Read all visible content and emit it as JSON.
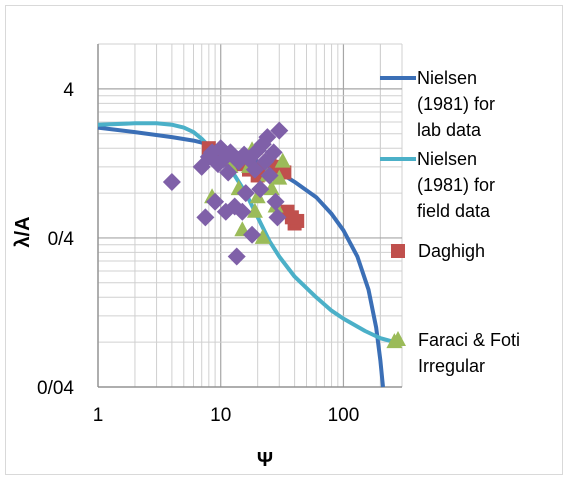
{
  "chart_data": {
    "type": "scatter",
    "xlabel": "Ψ",
    "ylabel": "λ/A",
    "x_scale": "log",
    "y_scale": "log",
    "xlim": [
      1,
      300
    ],
    "ylim": [
      0.04,
      8
    ],
    "grid": true,
    "legend_position": "right",
    "x_ticks": [
      {
        "v": 1,
        "label": "1"
      },
      {
        "v": 10,
        "label": "10"
      },
      {
        "v": 100,
        "label": "100"
      }
    ],
    "y_ticks": [
      {
        "v": 0.04,
        "label": "0/04"
      },
      {
        "v": 0.4,
        "label": "0/4"
      },
      {
        "v": 4,
        "label": "4"
      }
    ],
    "series": [
      {
        "name": "Nielsen (1981) for lab data",
        "legend_lines": [
          "Nielsen",
          "(1981) for",
          "lab data"
        ],
        "kind": "line",
        "color": "#3b6fb6",
        "points": [
          [
            1,
            2.2
          ],
          [
            2,
            2.05
          ],
          [
            4,
            1.9
          ],
          [
            6,
            1.8
          ],
          [
            8,
            1.7
          ],
          [
            10,
            1.62
          ],
          [
            15,
            1.45
          ],
          [
            20,
            1.3
          ],
          [
            30,
            1.1
          ],
          [
            40,
            0.95
          ],
          [
            60,
            0.75
          ],
          [
            80,
            0.58
          ],
          [
            100,
            0.45
          ],
          [
            130,
            0.3
          ],
          [
            160,
            0.18
          ],
          [
            185,
            0.1
          ],
          [
            200,
            0.06
          ],
          [
            210,
            0.04
          ]
        ]
      },
      {
        "name": "Nielsen (1981) for field data",
        "legend_lines": [
          "Nielsen",
          "(1981) for",
          "field data"
        ],
        "kind": "line",
        "color": "#4bb0c8",
        "points": [
          [
            1,
            2.3
          ],
          [
            2,
            2.35
          ],
          [
            3,
            2.35
          ],
          [
            4,
            2.3
          ],
          [
            5,
            2.2
          ],
          [
            6,
            2.05
          ],
          [
            7,
            1.85
          ],
          [
            8,
            1.65
          ],
          [
            10,
            1.35
          ],
          [
            13,
            1.05
          ],
          [
            16,
            0.8
          ],
          [
            20,
            0.55
          ],
          [
            25,
            0.38
          ],
          [
            30,
            0.3
          ],
          [
            40,
            0.22
          ],
          [
            60,
            0.16
          ],
          [
            80,
            0.13
          ],
          [
            100,
            0.115
          ],
          [
            150,
            0.095
          ],
          [
            200,
            0.085
          ],
          [
            260,
            0.08
          ]
        ]
      },
      {
        "name": "Daghigh",
        "legend_lines": [
          "Daghigh"
        ],
        "kind": "square",
        "color": "#c0504d",
        "points": [
          [
            8,
            1.6
          ],
          [
            9.5,
            1.45
          ],
          [
            12,
            1.35
          ],
          [
            14,
            1.25
          ],
          [
            17,
            1.15
          ],
          [
            20,
            1.05
          ],
          [
            22,
            1.15
          ],
          [
            25,
            1.3
          ],
          [
            30,
            1.2
          ],
          [
            33,
            1.1
          ],
          [
            35,
            0.6
          ],
          [
            40,
            0.5
          ],
          [
            42,
            0.52
          ],
          [
            38,
            0.55
          ]
        ]
      },
      {
        "name": "Faraci & Foti Irregular",
        "legend_lines": [
          "Faraci & Foti",
          "Irregular"
        ],
        "kind": "triangle",
        "color": "#9bbb59",
        "points": [
          [
            8.5,
            0.75
          ],
          [
            12,
            1.2
          ],
          [
            14,
            0.85
          ],
          [
            15,
            0.45
          ],
          [
            17,
            1.2
          ],
          [
            18,
            1.55
          ],
          [
            19,
            0.6
          ],
          [
            20,
            0.75
          ],
          [
            22,
            0.4
          ],
          [
            24,
            1.05
          ],
          [
            26,
            0.85
          ],
          [
            28,
            0.65
          ],
          [
            30,
            1.0
          ],
          [
            32,
            1.3
          ],
          [
            260,
            0.08
          ]
        ]
      },
      {
        "name": "",
        "legend_lines": [],
        "kind": "diamond",
        "color": "#7f60a8",
        "points": [
          [
            4,
            0.95
          ],
          [
            7,
            1.2
          ],
          [
            7.5,
            0.55
          ],
          [
            8,
            1.4
          ],
          [
            8.5,
            1.5
          ],
          [
            9,
            0.7
          ],
          [
            9.5,
            1.25
          ],
          [
            10,
            1.6
          ],
          [
            10.5,
            1.35
          ],
          [
            11,
            0.6
          ],
          [
            11.5,
            1.1
          ],
          [
            12,
            1.5
          ],
          [
            13,
            0.65
          ],
          [
            13.5,
            0.3
          ],
          [
            14,
            1.3
          ],
          [
            15,
            0.6
          ],
          [
            15.5,
            1.45
          ],
          [
            16,
            0.8
          ],
          [
            17,
            1.35
          ],
          [
            18,
            0.42
          ],
          [
            19,
            1.15
          ],
          [
            20,
            1.55
          ],
          [
            21,
            0.85
          ],
          [
            22,
            1.7
          ],
          [
            23,
            1.3
          ],
          [
            24,
            1.9
          ],
          [
            25,
            1.05
          ],
          [
            27,
            1.5
          ],
          [
            28,
            0.7
          ],
          [
            29,
            0.55
          ],
          [
            30,
            2.1
          ]
        ]
      }
    ]
  }
}
